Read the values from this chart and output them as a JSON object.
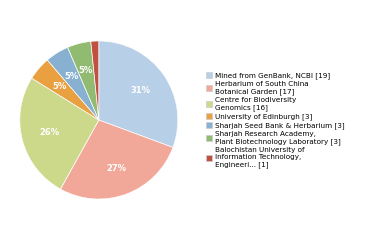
{
  "labels": [
    "Mined from GenBank, NCBI [19]",
    "Herbarium of South China\nBotanical Garden [17]",
    "Centre for Biodiversity\nGenomics [16]",
    "University of Edinburgh [3]",
    "Sharjah Seed Bank & Herbarium [3]",
    "Sharjah Research Academy,\nPlant Biotechnology Laboratory [3]",
    "Balochistan University of\nInformation Technology,\nEngineeri... [1]"
  ],
  "values": [
    19,
    17,
    16,
    3,
    3,
    3,
    1
  ],
  "colors": [
    "#b8cfe8",
    "#f2a899",
    "#ccd98a",
    "#e8a040",
    "#88b0d0",
    "#92bb72",
    "#c05040"
  ],
  "startangle": 90,
  "background_color": "#ffffff"
}
